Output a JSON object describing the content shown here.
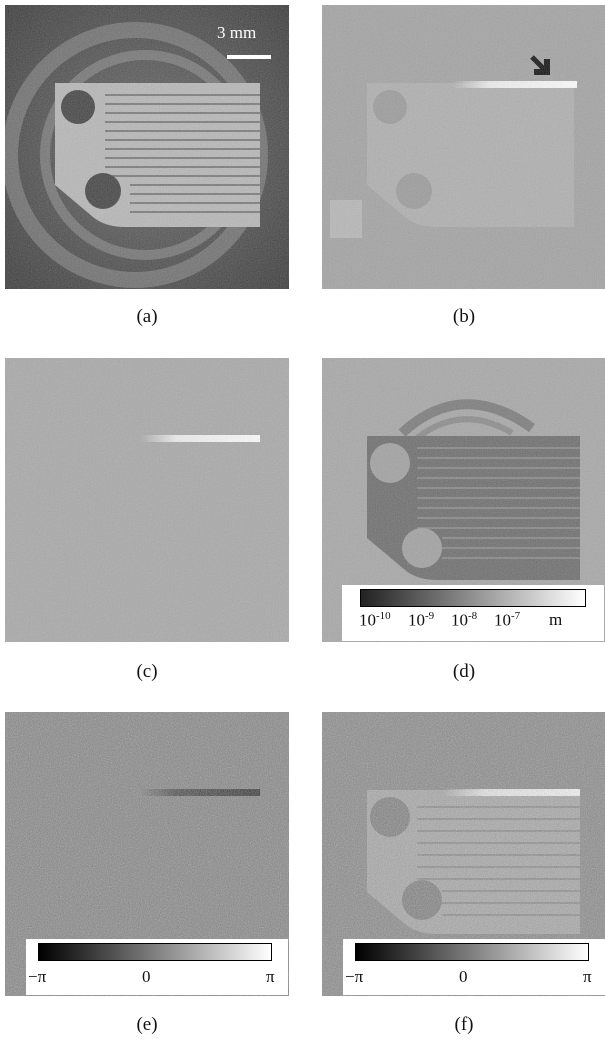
{
  "figure": {
    "panels": [
      {
        "id": "a",
        "caption": "(a)"
      },
      {
        "id": "b",
        "caption": "(b)"
      },
      {
        "id": "c",
        "caption": "(c)"
      },
      {
        "id": "d",
        "caption": "(d)"
      },
      {
        "id": "e",
        "caption": "(e)"
      },
      {
        "id": "f",
        "caption": "(f)"
      }
    ],
    "scalebar": {
      "label": "3 mm"
    },
    "colorbar_d": {
      "ticks": [
        {
          "base": "10",
          "exp": "-10"
        },
        {
          "base": "10",
          "exp": "-9"
        },
        {
          "base": "10",
          "exp": "-8"
        },
        {
          "base": "10",
          "exp": "-7"
        }
      ],
      "unit": "m"
    },
    "colorbar_e": {
      "ticks": [
        "−π",
        "0",
        "π"
      ]
    },
    "colorbar_f": {
      "ticks": [
        "−π",
        "0",
        "π"
      ]
    },
    "colors": {
      "grayscale_dark": "#000000",
      "grayscale_light": "#ffffff"
    }
  }
}
